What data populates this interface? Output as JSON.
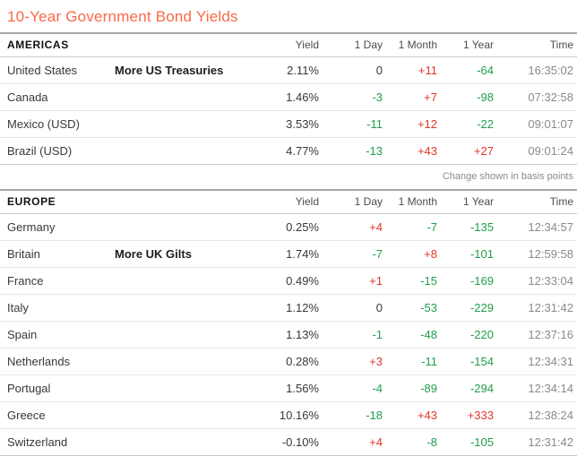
{
  "title": "10-Year Government Bond Yields",
  "colors": {
    "accent": "#fa6946",
    "up_red": "#e0352c",
    "down_green": "#1f9e4b",
    "muted": "#8a8a8a"
  },
  "columns": {
    "yield": "Yield",
    "day": "1 Day",
    "month": "1 Month",
    "year": "1 Year",
    "time": "Time"
  },
  "sections": [
    {
      "label": "AMERICAS",
      "footnote": "Change shown in basis points",
      "rows": [
        {
          "country": "United States",
          "link": "More US Treasuries",
          "yield": "2.11%",
          "day": "0",
          "month": "+11",
          "year": "-64",
          "time": "16:35:02"
        },
        {
          "country": "Canada",
          "link": "",
          "yield": "1.46%",
          "day": "-3",
          "month": "+7",
          "year": "-98",
          "time": "07:32:58"
        },
        {
          "country": "Mexico (USD)",
          "link": "",
          "yield": "3.53%",
          "day": "-11",
          "month": "+12",
          "year": "-22",
          "time": "09:01:07"
        },
        {
          "country": "Brazil (USD)",
          "link": "",
          "yield": "4.77%",
          "day": "-13",
          "month": "+43",
          "year": "+27",
          "time": "09:01:24"
        }
      ]
    },
    {
      "label": "EUROPE",
      "rows": [
        {
          "country": "Germany",
          "link": "",
          "yield": "0.25%",
          "day": "+4",
          "month": "-7",
          "year": "-135",
          "time": "12:34:57"
        },
        {
          "country": "Britain",
          "link": "More UK Gilts",
          "yield": "1.74%",
          "day": "-7",
          "month": "+8",
          "year": "-101",
          "time": "12:59:58"
        },
        {
          "country": "France",
          "link": "",
          "yield": "0.49%",
          "day": "+1",
          "month": "-15",
          "year": "-169",
          "time": "12:33:04"
        },
        {
          "country": "Italy",
          "link": "",
          "yield": "1.12%",
          "day": "0",
          "month": "-53",
          "year": "-229",
          "time": "12:31:42"
        },
        {
          "country": "Spain",
          "link": "",
          "yield": "1.13%",
          "day": "-1",
          "month": "-48",
          "year": "-220",
          "time": "12:37:16"
        },
        {
          "country": "Netherlands",
          "link": "",
          "yield": "0.28%",
          "day": "+3",
          "month": "-11",
          "year": "-154",
          "time": "12:34:31"
        },
        {
          "country": "Portugal",
          "link": "",
          "yield": "1.56%",
          "day": "-4",
          "month": "-89",
          "year": "-294",
          "time": "12:34:14"
        },
        {
          "country": "Greece",
          "link": "",
          "yield": "10.16%",
          "day": "-18",
          "month": "+43",
          "year": "+333",
          "time": "12:38:24"
        },
        {
          "country": "Switzerland",
          "link": "",
          "yield": "-0.10%",
          "day": "+4",
          "month": "-8",
          "year": "-105",
          "time": "12:31:42"
        }
      ]
    }
  ]
}
